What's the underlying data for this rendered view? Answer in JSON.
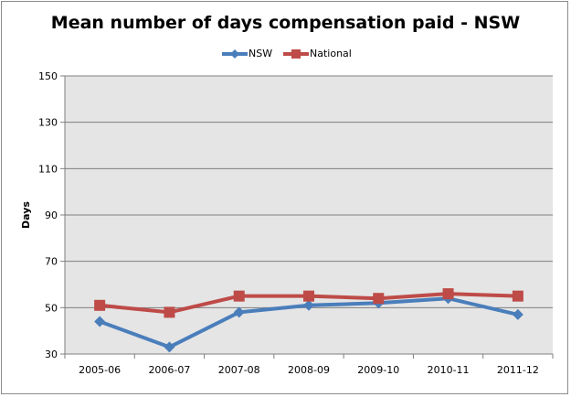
{
  "chart_data": {
    "type": "line",
    "title": "Mean number of days compensation paid - NSW",
    "xlabel": "",
    "ylabel": "Days",
    "categories": [
      "2005-06",
      "2006-07",
      "2007-08",
      "2008-09",
      "2009-10",
      "2010-11",
      "2011-12"
    ],
    "ylim": [
      30,
      150
    ],
    "yticks": [
      30,
      50,
      70,
      90,
      110,
      130,
      150
    ],
    "grid": true,
    "legend_position": "top",
    "series": [
      {
        "name": "NSW",
        "values": [
          44,
          33,
          48,
          51,
          52,
          54,
          47
        ],
        "color": "#4a7ebb",
        "marker": "diamond"
      },
      {
        "name": "National",
        "values": [
          51,
          48,
          55,
          55,
          54,
          56,
          55
        ],
        "color": "#be4b48",
        "marker": "square"
      }
    ]
  },
  "colors": {
    "plot_background": "#e5e5e5",
    "gridline": "#7f7f7f"
  }
}
